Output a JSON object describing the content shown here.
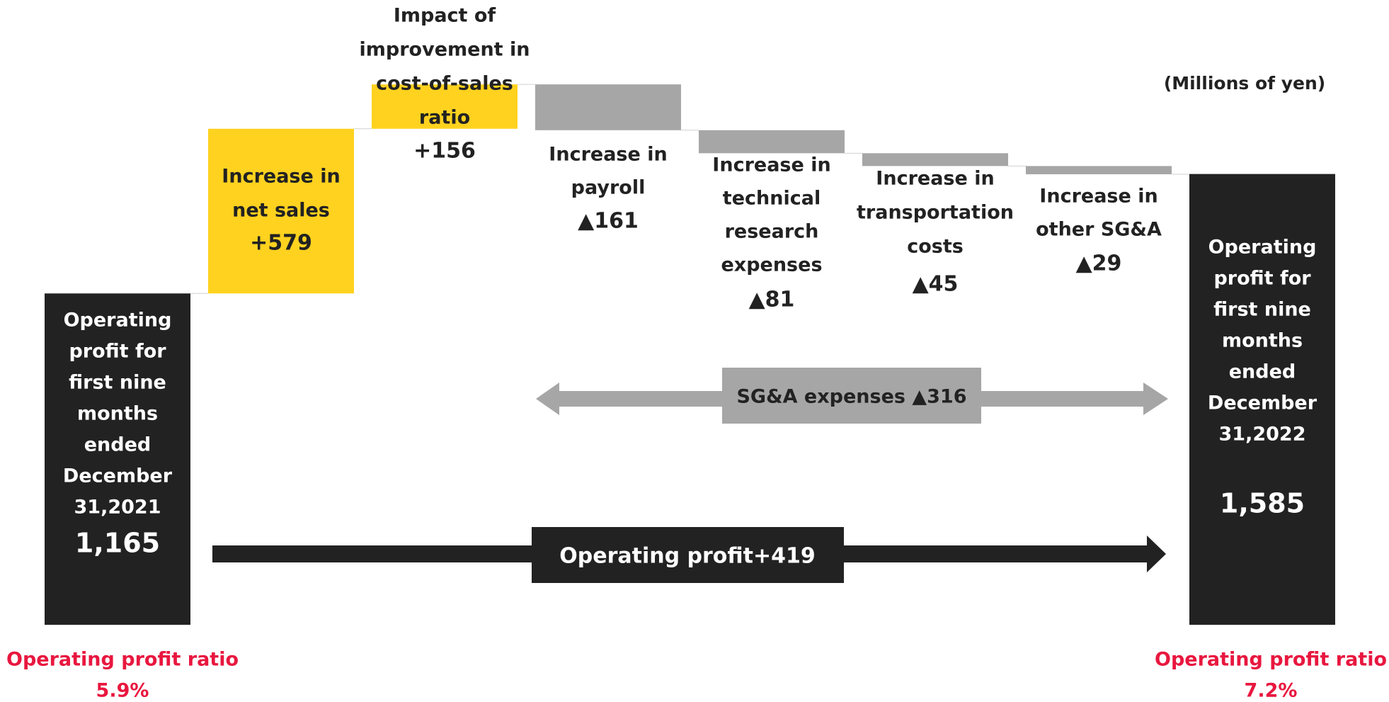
{
  "chart_data": {
    "type": "waterfall",
    "unit_label": "(Millions of yen)",
    "categories": [
      [
        "Operating",
        "profit for",
        "first nine",
        "months",
        "ended",
        "December",
        "31,2021"
      ],
      [
        "Increase in",
        "net sales"
      ],
      [
        "Impact of",
        "improvement in",
        "cost-of-sales",
        "ratio"
      ],
      [
        "Increase in",
        "payroll"
      ],
      [
        "Increase in",
        "technical",
        "research",
        "expenses"
      ],
      [
        "Increase in",
        "transportation",
        "costs"
      ],
      [
        "Increase in",
        "other SG&A"
      ],
      [
        "Operating",
        "profit for",
        "first nine",
        "months",
        "ended",
        "December",
        "31,2022"
      ]
    ],
    "values": [
      1165,
      579,
      156,
      -161,
      -81,
      -45,
      -29,
      1585
    ],
    "value_labels": [
      "1,165",
      "+579",
      "+156",
      "▲161",
      "▲81",
      "▲45",
      "▲29",
      "1,585"
    ],
    "colors": [
      "#222222",
      "#ffd21f",
      "#ffd21f",
      "#a6a6a6",
      "#a6a6a6",
      "#a6a6a6",
      "#a6a6a6",
      "#222222"
    ],
    "annotations": [
      "SG&A expenses ▲316",
      "Operating profit+419"
    ],
    "ratios": [
      {
        "title": "Operating profit ratio",
        "value": 5.9,
        "label": "5.9%"
      },
      {
        "title": "Operating profit ratio",
        "value": 7.2,
        "label": "7.2%"
      }
    ]
  }
}
